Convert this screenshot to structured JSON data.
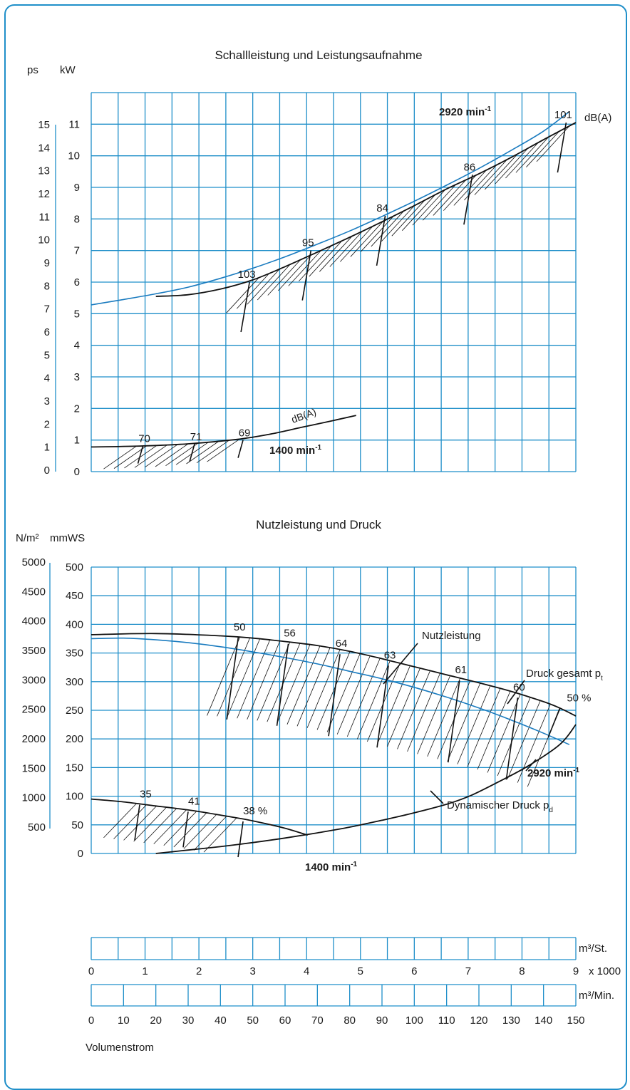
{
  "chart_data": [
    {
      "type": "line",
      "title": "Schallleistung und Leistungsaufnahme",
      "y_unit_left": "ps",
      "y_unit_right": "kW",
      "ps_ticks": [
        "0",
        "1",
        "2",
        "3",
        "4",
        "5",
        "6",
        "7",
        "8",
        "9",
        "10",
        "11",
        "12",
        "13",
        "14",
        "15"
      ],
      "kw_ticks": [
        "0",
        "1",
        "2",
        "3",
        "4",
        "5",
        "6",
        "7",
        "8",
        "9",
        "10",
        "11"
      ],
      "ylim_kw": [
        0,
        12
      ],
      "xlim_m3min": [
        0,
        150
      ],
      "grid": true,
      "series": [
        {
          "name": "2920 min-1",
          "color": "#1a7bbf",
          "x": [
            0,
            10,
            20,
            30,
            40,
            50,
            60,
            70,
            80,
            90,
            100,
            110,
            120,
            130,
            140,
            148
          ],
          "y": [
            5.28,
            5.45,
            5.63,
            5.84,
            6.12,
            6.44,
            6.8,
            7.2,
            7.62,
            8.08,
            8.56,
            9.07,
            9.6,
            10.17,
            10.78,
            11.4
          ]
        },
        {
          "label": "black-2920",
          "color": "#111111",
          "x": [
            20,
            30,
            40,
            50,
            60,
            70,
            80,
            90,
            100,
            110,
            120,
            130,
            140,
            150
          ],
          "y": [
            5.55,
            5.6,
            5.78,
            6.07,
            6.49,
            6.95,
            7.42,
            7.91,
            8.42,
            8.95,
            9.43,
            9.95,
            10.51,
            11.05
          ]
        },
        {
          "name": "1400 min-1",
          "color": "#111111",
          "x": [
            0,
            15,
            30,
            45,
            55,
            65,
            75,
            82
          ],
          "y": [
            0.78,
            0.81,
            0.88,
            1.02,
            1.18,
            1.4,
            1.62,
            1.78
          ]
        }
      ],
      "sound_levels_2920": [
        {
          "label": "103",
          "x": 49,
          "y": 6.0
        },
        {
          "label": "95",
          "x": 68,
          "y": 7.0
        },
        {
          "label": "84",
          "x": 91,
          "y": 8.1
        },
        {
          "label": "86",
          "x": 118,
          "y": 9.4
        },
        {
          "label": "101",
          "x": 147,
          "y": 11.05
        }
      ],
      "sound_levels_1400": [
        {
          "label": "70",
          "x": 16,
          "y": 0.82
        },
        {
          "label": "71",
          "x": 32,
          "y": 0.88
        },
        {
          "label": "69",
          "x": 47,
          "y": 1.0
        }
      ],
      "annotations": {
        "speed_high": "2920 min",
        "speed_low": "1400 min",
        "speed_sup": "-1",
        "dba": "dB(A)",
        "dba_low": "dB(A)"
      }
    },
    {
      "type": "line",
      "title": "Nutzleistung und Druck",
      "y_unit_left": "N/m²",
      "y_unit_right": "mmWS",
      "nm2_ticks": [
        "500",
        "1000",
        "1500",
        "2000",
        "2500",
        "3000",
        "3500",
        "4000",
        "4500",
        "5000"
      ],
      "mmws_ticks": [
        "0",
        "50",
        "100",
        "150",
        "200",
        "250",
        "300",
        "350",
        "400",
        "450",
        "500"
      ],
      "ylim_mmws": [
        0,
        500
      ],
      "xlim_m3min": [
        0,
        150
      ],
      "grid": true,
      "series": [
        {
          "name": "Druck gesamt p",
          "subscript": "t",
          "color": "#111111",
          "x": [
            0,
            20,
            40,
            50,
            60,
            70,
            80,
            90,
            100,
            110,
            120,
            130,
            140,
            145,
            150
          ],
          "y": [
            382,
            384,
            380,
            376,
            370,
            363,
            353,
            340,
            326,
            312,
            298,
            283,
            265,
            254,
            240
          ]
        },
        {
          "name": "2920 min-1 (blau)",
          "color": "#1a7bbf",
          "x": [
            0,
            10,
            20,
            30,
            40,
            50,
            60,
            70,
            80,
            90,
            100,
            110,
            120,
            130,
            140,
            148
          ],
          "y": [
            375,
            376,
            373,
            368,
            361,
            352,
            342,
            331,
            318,
            305,
            290,
            273,
            254,
            233,
            210,
            190
          ]
        },
        {
          "name": "Dynamischer Druck p",
          "subscript": "d",
          "color": "#111111",
          "x": [
            20,
            30,
            40,
            50,
            60,
            70,
            80,
            90,
            100,
            110,
            117,
            125,
            135,
            145,
            150
          ],
          "y": [
            0,
            6,
            12,
            19,
            27,
            36,
            46,
            58,
            71,
            86,
            100,
            122,
            152,
            190,
            225
          ]
        },
        {
          "name": "1400 min-1",
          "color": "#111111",
          "x": [
            0,
            10,
            20,
            30,
            40,
            50,
            60,
            67
          ],
          "y": [
            95,
            90,
            83,
            76,
            67,
            57,
            44,
            32
          ]
        }
      ],
      "efficiency_2920": [
        {
          "label": "50",
          "x": 45.5,
          "y": 377
        },
        {
          "label": "56",
          "x": 61,
          "y": 366
        },
        {
          "label": "64",
          "x": 77,
          "y": 348
        },
        {
          "label": "63",
          "x": 92,
          "y": 328
        },
        {
          "label": "61",
          "x": 114,
          "y": 302
        },
        {
          "label": "60",
          "x": 132,
          "y": 272
        },
        {
          "label": "50 %",
          "x": 145,
          "y": 253
        }
      ],
      "efficiency_1400": [
        {
          "label": "35",
          "x": 15,
          "y": 85
        },
        {
          "label": "41",
          "x": 30,
          "y": 73
        },
        {
          "label": "38 %",
          "x": 47,
          "y": 56
        }
      ],
      "annotations": {
        "nutzleistung": "Nutzleistung",
        "druck_gesamt": "Druck gesamt p",
        "druck_gesamt_sub": "t",
        "dyn_druck": "Dynamischer Druck p",
        "dyn_druck_sub": "d",
        "speed_high": "2920 min",
        "speed_low": "1400 min",
        "speed_sup": "-1"
      }
    }
  ],
  "volume_axes": {
    "m3h_ticks": [
      "0",
      "1",
      "2",
      "3",
      "4",
      "5",
      "6",
      "7",
      "8",
      "9"
    ],
    "m3h_unit": "m³/St.",
    "m3h_multiplier": "x 1000",
    "m3min_ticks": [
      "0",
      "10",
      "20",
      "30",
      "40",
      "50",
      "60",
      "70",
      "80",
      "90",
      "100",
      "110",
      "120",
      "130",
      "140",
      "150"
    ],
    "m3min_unit": "m³/Min.",
    "xlabel": "Volumenstrom"
  },
  "colors": {
    "grid": "#1f8fc9",
    "frame": "#1f8fc9",
    "curve_blue": "#1a7bbf",
    "curve_black": "#111111"
  }
}
